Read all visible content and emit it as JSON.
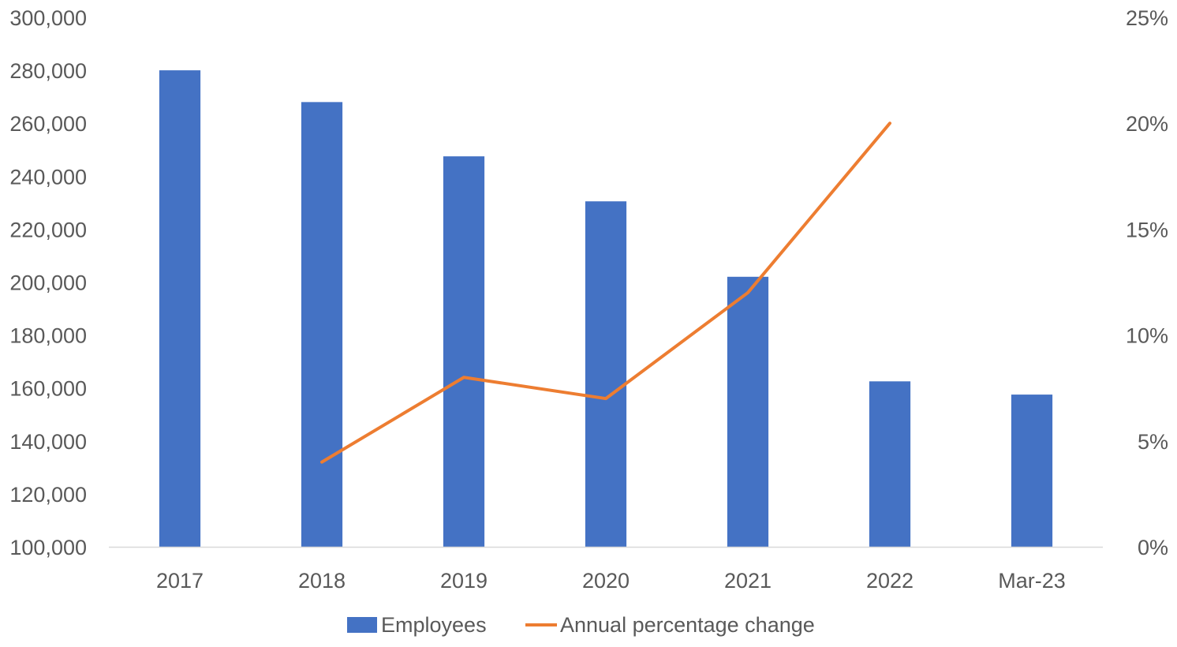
{
  "chart_data": {
    "type": "bar",
    "categories": [
      "2017",
      "2018",
      "2019",
      "2020",
      "2021",
      "2022",
      "Mar-23"
    ],
    "series": [
      {
        "name": "Employees",
        "type": "bar",
        "axis": "left",
        "color": "#4472C4",
        "values": [
          280000,
          268000,
          247500,
          230500,
          202000,
          162500,
          157500
        ]
      },
      {
        "name": "Annual percentage change",
        "type": "line",
        "axis": "right",
        "color": "#ED7D31",
        "values": [
          null,
          4,
          8,
          7,
          12,
          20,
          null
        ]
      }
    ],
    "y_left": {
      "min": 100000,
      "max": 300000,
      "ticks": [
        100000,
        120000,
        140000,
        160000,
        180000,
        200000,
        220000,
        240000,
        260000,
        280000,
        300000
      ],
      "tick_labels": [
        "100,000",
        "120,000",
        "140,000",
        "160,000",
        "180,000",
        "200,000",
        "220,000",
        "240,000",
        "260,000",
        "280,000",
        "300,000"
      ]
    },
    "y_right": {
      "min": 0,
      "max": 25,
      "ticks": [
        0,
        5,
        10,
        15,
        20,
        25
      ],
      "tick_labels": [
        "0%",
        "5%",
        "10%",
        "15%",
        "20%",
        "25%"
      ]
    },
    "grid": false,
    "legend": {
      "position": "bottom",
      "entries": [
        "Employees",
        "Annual percentage change"
      ]
    },
    "title": "",
    "xlabel": "",
    "ylabel": ""
  }
}
